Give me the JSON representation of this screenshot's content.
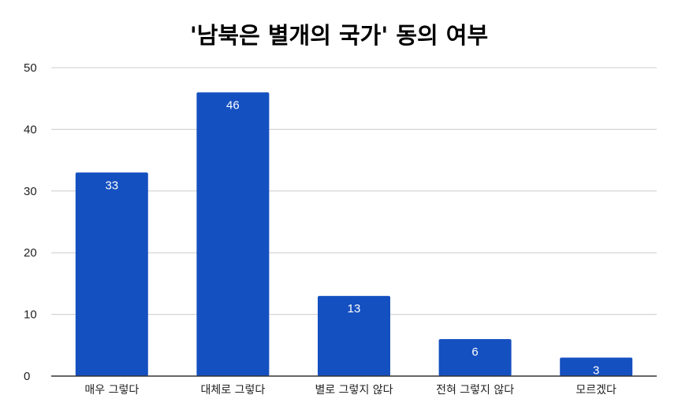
{
  "chart_data": {
    "type": "bar",
    "title": "'남북은 별개의 국가' 동의 여부",
    "categories": [
      "매우 그렇다",
      "대체로 그렇다",
      "별로 그렇지 않다",
      "전혀 그렇지 않다",
      "모르겠다"
    ],
    "values": [
      33,
      46,
      13,
      6,
      3
    ],
    "ylim": [
      0,
      50
    ],
    "yticks": [
      0,
      10,
      20,
      30,
      40,
      50
    ],
    "grid": true,
    "data_labels": true,
    "colors": {
      "bar": "#1550c0",
      "grid": "#cccccc",
      "axis": "#333333"
    }
  }
}
